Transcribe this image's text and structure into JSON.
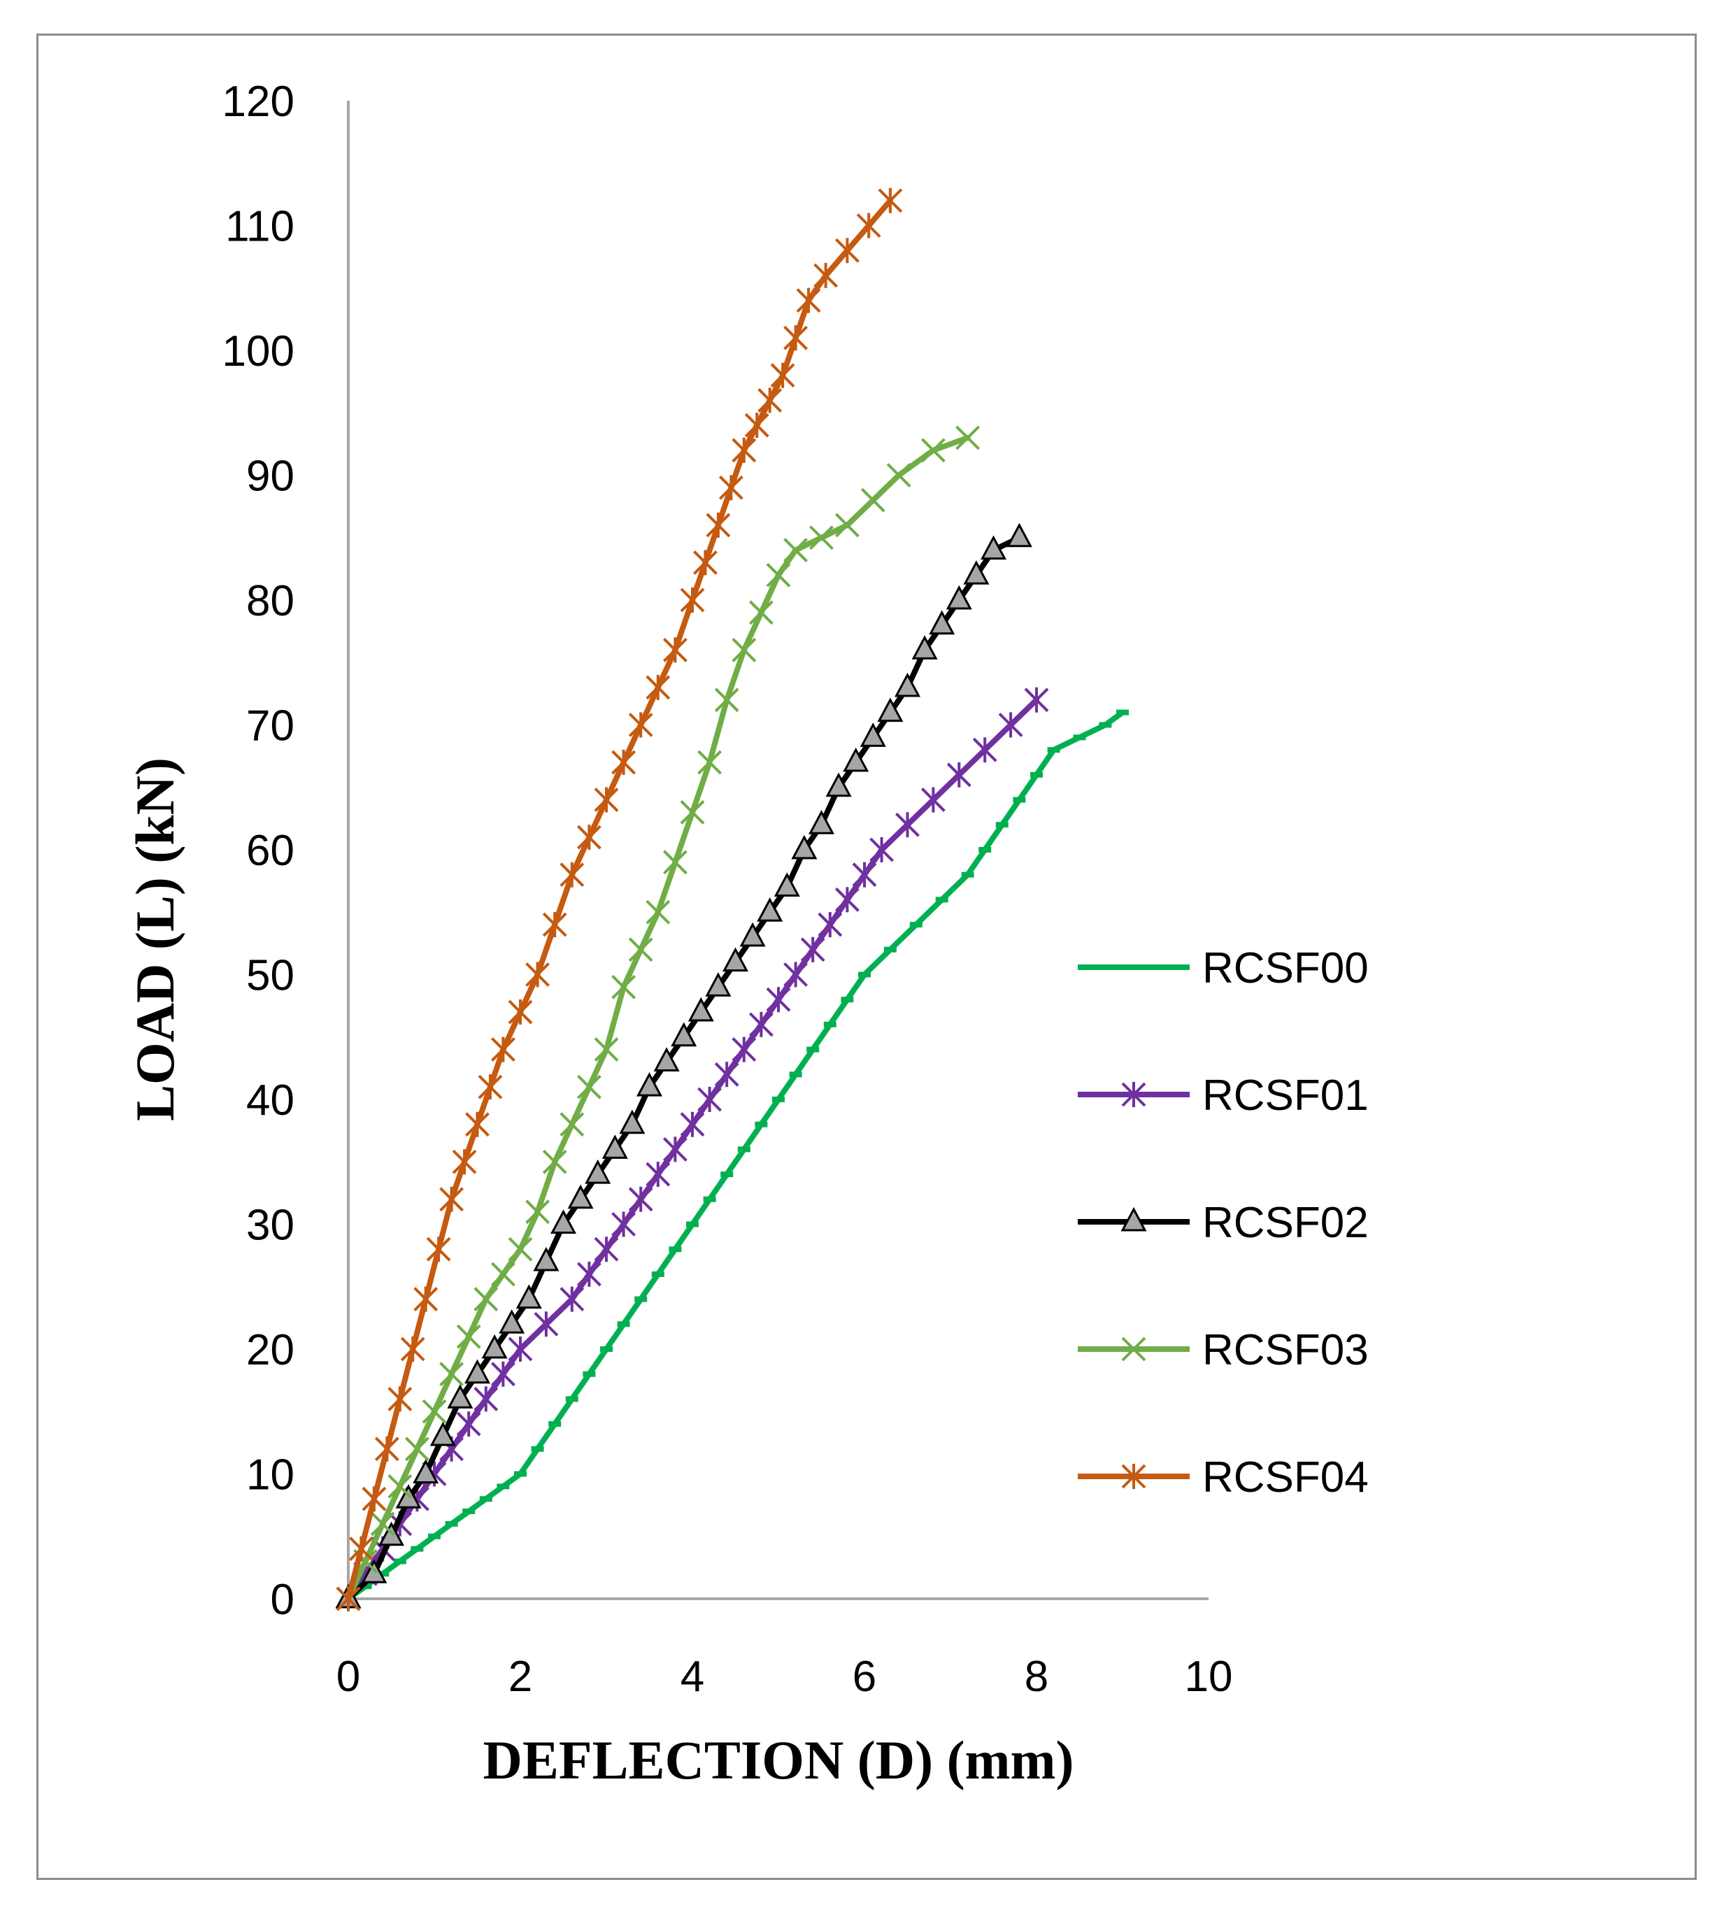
{
  "chart_data": {
    "type": "line",
    "title": "",
    "xlabel": "DEFLECTION (D) (mm)",
    "ylabel": "LOAD  (L) (kN)",
    "xlim": [
      0,
      10
    ],
    "ylim": [
      0,
      120
    ],
    "xticks": [
      "0",
      "2",
      "4",
      "6",
      "8",
      "10"
    ],
    "yticks": [
      "0",
      "10",
      "20",
      "30",
      "40",
      "50",
      "60",
      "70",
      "80",
      "90",
      "100",
      "110",
      "120"
    ],
    "grid": false,
    "legend_position": "right",
    "series": [
      {
        "name": " RCSF00",
        "color": "#00b050",
        "marker": "dash",
        "x": [
          0,
          0.2,
          0.4,
          0.6,
          0.8,
          1.0,
          1.2,
          1.4,
          1.6,
          1.8,
          2.0,
          2.2,
          2.4,
          2.6,
          2.8,
          3.0,
          3.2,
          3.4,
          3.6,
          3.8,
          4.0,
          4.2,
          4.4,
          4.6,
          4.8,
          5.0,
          5.2,
          5.4,
          5.6,
          5.8,
          6.0,
          6.3,
          6.6,
          6.9,
          7.2,
          7.4,
          7.6,
          7.8,
          8.0,
          8.2,
          8.5,
          8.8,
          9.0
        ],
        "y": [
          0,
          1,
          2,
          3,
          4,
          5,
          6,
          7,
          8,
          9,
          10,
          12,
          14,
          16,
          18,
          20,
          22,
          24,
          26,
          28,
          30,
          32,
          34,
          36,
          38,
          40,
          42,
          44,
          46,
          48,
          50,
          52,
          54,
          56,
          58,
          60,
          62,
          64,
          66,
          68,
          69,
          70,
          71
        ]
      },
      {
        "name": "RCSF01",
        "color": "#7030a0",
        "marker": "asterisk",
        "x": [
          0,
          0.2,
          0.4,
          0.6,
          0.8,
          1.0,
          1.2,
          1.4,
          1.6,
          1.8,
          2.0,
          2.3,
          2.6,
          2.8,
          3.0,
          3.2,
          3.4,
          3.6,
          3.8,
          4.0,
          4.2,
          4.4,
          4.6,
          4.8,
          5.0,
          5.2,
          5.4,
          5.6,
          5.8,
          6.0,
          6.2,
          6.5,
          6.8,
          7.1,
          7.4,
          7.7,
          8.0
        ],
        "y": [
          0,
          2,
          4,
          6,
          8,
          10,
          12,
          14,
          16,
          18,
          20,
          22,
          24,
          26,
          28,
          30,
          32,
          34,
          36,
          38,
          40,
          42,
          44,
          46,
          48,
          50,
          52,
          54,
          56,
          58,
          60,
          62,
          64,
          66,
          68,
          70,
          72
        ]
      },
      {
        "name": "RCSF02",
        "color": "#000000",
        "marker": "triangle",
        "x": [
          0,
          0.3,
          0.5,
          0.7,
          0.9,
          1.1,
          1.3,
          1.5,
          1.7,
          1.9,
          2.1,
          2.3,
          2.5,
          2.7,
          2.9,
          3.1,
          3.3,
          3.5,
          3.7,
          3.9,
          4.1,
          4.3,
          4.5,
          4.7,
          4.9,
          5.1,
          5.3,
          5.5,
          5.7,
          5.9,
          6.1,
          6.3,
          6.5,
          6.7,
          6.9,
          7.1,
          7.3,
          7.5,
          7.8
        ],
        "y": [
          0,
          2,
          5,
          8,
          10,
          13,
          16,
          18,
          20,
          22,
          24,
          27,
          30,
          32,
          34,
          36,
          38,
          41,
          43,
          45,
          47,
          49,
          51,
          53,
          55,
          57,
          60,
          62,
          65,
          67,
          69,
          71,
          73,
          76,
          78,
          80,
          82,
          84,
          85
        ]
      },
      {
        "name": "RCSF03",
        "color": "#70ad47",
        "marker": "x",
        "x": [
          0,
          0.2,
          0.4,
          0.6,
          0.8,
          1.0,
          1.2,
          1.4,
          1.6,
          1.8,
          2.0,
          2.2,
          2.4,
          2.6,
          2.8,
          3.0,
          3.2,
          3.4,
          3.6,
          3.8,
          4.0,
          4.2,
          4.4,
          4.6,
          4.8,
          5.0,
          5.2,
          5.5,
          5.8,
          6.1,
          6.4,
          6.8,
          7.2
        ],
        "y": [
          0,
          3,
          6,
          9,
          12,
          15,
          18,
          21,
          24,
          26,
          28,
          31,
          35,
          38,
          41,
          44,
          49,
          52,
          55,
          59,
          63,
          67,
          72,
          76,
          79,
          82,
          84,
          85,
          86,
          88,
          90,
          92,
          93
        ]
      },
      {
        "name": "RCSF04",
        "color": "#c55a11",
        "marker": "asterisk",
        "x": [
          0,
          0.15,
          0.3,
          0.45,
          0.6,
          0.75,
          0.9,
          1.05,
          1.2,
          1.35,
          1.5,
          1.65,
          1.8,
          2.0,
          2.2,
          2.4,
          2.6,
          2.8,
          3.0,
          3.2,
          3.4,
          3.6,
          3.8,
          4.0,
          4.15,
          4.3,
          4.45,
          4.6,
          4.75,
          4.9,
          5.05,
          5.2,
          5.35,
          5.55,
          5.8,
          6.05,
          6.3
        ],
        "y": [
          0,
          4,
          8,
          12,
          16,
          20,
          24,
          28,
          32,
          35,
          38,
          41,
          44,
          47,
          50,
          54,
          58,
          61,
          64,
          67,
          70,
          73,
          76,
          80,
          83,
          86,
          89,
          92,
          94,
          96,
          98,
          101,
          104,
          106,
          108,
          110,
          112
        ]
      }
    ]
  }
}
